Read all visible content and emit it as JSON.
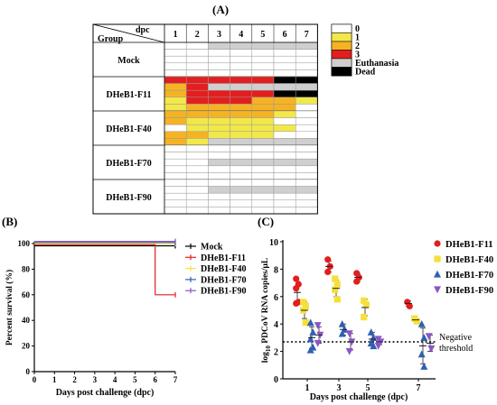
{
  "panels": {
    "a_label": "(A)",
    "b_label": "(B)",
    "c_label": "(C)"
  },
  "colors": {
    "score0": "#ffffff",
    "score1": "#f2e84a",
    "score2": "#f5b324",
    "score3": "#e31e1e",
    "euthanasia": "#cfcfcf",
    "dead": "#000000",
    "mock": "#000000",
    "f11": "#e31e1e",
    "f40": "#f5e03a",
    "f70": "#2f5fb3",
    "f90": "#8b55c8"
  },
  "heatmap": {
    "corner_dpc": "dpc",
    "corner_group": "Group",
    "days": [
      "1",
      "2",
      "3",
      "4",
      "5",
      "6",
      "7"
    ],
    "groups": [
      {
        "name": "Mock",
        "rows": [
          [
            0,
            0,
            4,
            4,
            4,
            4,
            4
          ],
          [
            0,
            0,
            0,
            0,
            0,
            0,
            0
          ],
          [
            0,
            0,
            0,
            0,
            0,
            0,
            0
          ],
          [
            0,
            0,
            0,
            0,
            0,
            0,
            0
          ],
          [
            0,
            0,
            0,
            0,
            0,
            0,
            0
          ]
        ]
      },
      {
        "name": "DHeB1-F11",
        "rows": [
          [
            3,
            3,
            3,
            3,
            3,
            5,
            5
          ],
          [
            2,
            3,
            4,
            4,
            4,
            4,
            4
          ],
          [
            2,
            3,
            3,
            3,
            3,
            5,
            5
          ],
          [
            1,
            3,
            3,
            3,
            2,
            2,
            1
          ],
          [
            1,
            2,
            2,
            2,
            2,
            2,
            0
          ]
        ]
      },
      {
        "name": "DHeB1-F40",
        "rows": [
          [
            2,
            2,
            2,
            2,
            2,
            1,
            0
          ],
          [
            2,
            1,
            1,
            1,
            1,
            0,
            0
          ],
          [
            0,
            1,
            1,
            1,
            1,
            1,
            0
          ],
          [
            2,
            2,
            1,
            1,
            1,
            0,
            0
          ],
          [
            2,
            1,
            4,
            4,
            4,
            4,
            4
          ]
        ]
      },
      {
        "name": "DHeB1-F70",
        "rows": [
          [
            0,
            0,
            0,
            0,
            0,
            0,
            0
          ],
          [
            0,
            0,
            0,
            0,
            0,
            0,
            0
          ],
          [
            0,
            0,
            4,
            4,
            4,
            4,
            4
          ],
          [
            0,
            0,
            0,
            0,
            0,
            0,
            0
          ],
          [
            0,
            0,
            0,
            0,
            0,
            0,
            0
          ]
        ]
      },
      {
        "name": "DHeB1-F90",
        "rows": [
          [
            0,
            0,
            0,
            0,
            0,
            0,
            0
          ],
          [
            0,
            0,
            4,
            4,
            4,
            4,
            4
          ],
          [
            0,
            0,
            0,
            0,
            0,
            0,
            0
          ],
          [
            0,
            0,
            0,
            0,
            0,
            0,
            0
          ],
          [
            0,
            0,
            0,
            0,
            0,
            0,
            0
          ]
        ]
      }
    ],
    "legend": [
      {
        "label": "0",
        "color": "#ffffff"
      },
      {
        "label": "1",
        "color": "#f2e84a"
      },
      {
        "label": "2",
        "color": "#f5b324"
      },
      {
        "label": "3",
        "color": "#e31e1e"
      },
      {
        "label": "Euthanasia",
        "color": "#cfcfcf"
      },
      {
        "label": "Dead",
        "color": "#000000"
      }
    ]
  },
  "chart_data": [
    {
      "type": "line",
      "xlabel": "Days post challenge (dpc)",
      "ylabel": "Percent survival (%)",
      "xlim": [
        0,
        7
      ],
      "ylim": [
        0,
        100
      ],
      "xticks": [
        "0",
        "1",
        "2",
        "3",
        "4",
        "5",
        "6",
        "7"
      ],
      "yticks": [
        "0",
        "20",
        "40",
        "60",
        "80",
        "100"
      ],
      "step": true,
      "legend_position": "right",
      "series": [
        {
          "name": "Mock",
          "color": "#000000",
          "x": [
            0,
            7
          ],
          "y": [
            100,
            100
          ]
        },
        {
          "name": "DHeB1-F11",
          "color": "#e31e1e",
          "x": [
            0,
            6,
            6,
            7
          ],
          "y": [
            100,
            100,
            60,
            60
          ]
        },
        {
          "name": "DHeB1-F40",
          "color": "#f5e03a",
          "x": [
            0,
            7
          ],
          "y": [
            100,
            100
          ]
        },
        {
          "name": "DHeB1-F70",
          "color": "#2f5fb3",
          "x": [
            0,
            7
          ],
          "y": [
            100,
            100
          ]
        },
        {
          "name": "DHeB1-F90",
          "color": "#8b55c8",
          "x": [
            0,
            7
          ],
          "y": [
            100,
            100
          ]
        }
      ]
    },
    {
      "type": "scatter",
      "xlabel": "Days post challenge (dpc)",
      "ylabel": "log10 PDCoV RNA copies/μL",
      "ylabel_main": "log",
      "ylabel_sub": "10",
      "ylabel_rest": " PDCoV RNA copies/μL",
      "xticks": [
        "1",
        "3",
        "5",
        "7"
      ],
      "yticks": [
        "0",
        "2",
        "4",
        "6",
        "8",
        "10"
      ],
      "ylim": [
        0,
        10
      ],
      "legend_position": "top-right",
      "threshold": {
        "value": 2.7,
        "label_line1": "Negative",
        "label_line2": "threshold"
      },
      "series": [
        {
          "name": "DHeB1-F11",
          "marker": "circle",
          "color": "#e31e1e",
          "points": [
            {
              "dpc": 1,
              "values": [
                7.3,
                6.9,
                6.6,
                5.6,
                5.5
              ]
            },
            {
              "dpc": 3,
              "values": [
                8.7,
                8.2,
                7.8
              ]
            },
            {
              "dpc": 5,
              "values": [
                7.7,
                7.4,
                7.1
              ]
            },
            {
              "dpc": 7,
              "values": [
                5.6,
                5.3
              ]
            }
          ],
          "means": [
            {
              "dpc": 1,
              "mean": 6.3,
              "sd": 0.8
            },
            {
              "dpc": 3,
              "mean": 8.2,
              "sd": 0.4
            },
            {
              "dpc": 5,
              "mean": 7.4,
              "sd": 0.3
            },
            {
              "dpc": 7,
              "mean": 5.5,
              "sd": 0.2
            }
          ]
        },
        {
          "name": "DHeB1-F40",
          "marker": "square",
          "color": "#f5e03a",
          "points": [
            {
              "dpc": 1,
              "values": [
                5.6,
                5.3,
                5.0,
                4.1
              ]
            },
            {
              "dpc": 3,
              "values": [
                7.3,
                6.9,
                6.5,
                5.8
              ]
            },
            {
              "dpc": 5,
              "values": [
                5.7,
                5.4,
                4.5
              ]
            },
            {
              "dpc": 7,
              "values": [
                4.4,
                4.2
              ]
            }
          ],
          "means": [
            {
              "dpc": 1,
              "mean": 5.0,
              "sd": 0.6
            },
            {
              "dpc": 3,
              "mean": 6.6,
              "sd": 0.6
            },
            {
              "dpc": 5,
              "mean": 5.2,
              "sd": 0.6
            },
            {
              "dpc": 7,
              "mean": 4.3,
              "sd": 0.1
            }
          ]
        },
        {
          "name": "DHeB1-F70",
          "marker": "triangle-up",
          "color": "#2f5fb3",
          "points": [
            {
              "dpc": 1,
              "values": [
                4.1,
                3.4,
                2.9,
                2.3,
                2.1
              ]
            },
            {
              "dpc": 3,
              "values": [
                4.0,
                3.6,
                3.3
              ]
            },
            {
              "dpc": 5,
              "values": [
                3.4,
                3.0,
                2.6,
                2.4
              ]
            },
            {
              "dpc": 7,
              "values": [
                4.0,
                3.0,
                1.8,
                0.9
              ]
            }
          ],
          "means": [
            {
              "dpc": 1,
              "mean": 3.0,
              "sd": 0.8
            },
            {
              "dpc": 3,
              "mean": 3.6,
              "sd": 0.4
            },
            {
              "dpc": 5,
              "mean": 2.9,
              "sd": 0.5
            },
            {
              "dpc": 7,
              "mean": 2.4,
              "sd": 1.3
            }
          ]
        },
        {
          "name": "DHeB1-F90",
          "marker": "triangle-down",
          "color": "#8b55c8",
          "points": [
            {
              "dpc": 1,
              "values": [
                3.9,
                3.2,
                2.6
              ]
            },
            {
              "dpc": 3,
              "values": [
                3.3,
                2.7,
                2.0
              ]
            },
            {
              "dpc": 5,
              "values": [
                2.9,
                2.7,
                2.4
              ]
            },
            {
              "dpc": 7,
              "values": [
                3.1,
                2.2
              ]
            }
          ],
          "means": [
            {
              "dpc": 1,
              "mean": 3.2,
              "sd": 0.6
            },
            {
              "dpc": 3,
              "mean": 2.7,
              "sd": 0.6
            },
            {
              "dpc": 5,
              "mean": 2.7,
              "sd": 0.2
            },
            {
              "dpc": 7,
              "mean": 2.6,
              "sd": 0.6
            }
          ]
        }
      ]
    }
  ]
}
